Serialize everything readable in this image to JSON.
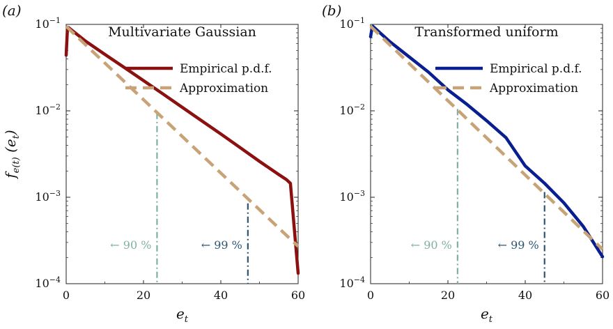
{
  "chart_data": [
    {
      "type": "line",
      "panel_label": "(a)",
      "title": "Multivariate Gaussian",
      "xlabel": "e",
      "xlabel_sub": "t",
      "ylabel": {
        "base": "f",
        "sub": "e(t)",
        "arg_open": "(e",
        "arg_sub": "t",
        "arg_close": ")"
      },
      "xlim": [
        0,
        60
      ],
      "ylim": [
        0.0001,
        0.1
      ],
      "yscale": "log",
      "xticks": [
        "0",
        "20",
        "40",
        "60"
      ],
      "yticks": [
        {
          "base": "10",
          "exp": "−1",
          "value": 0.1
        },
        {
          "base": "10",
          "exp": "−2",
          "value": 0.01
        },
        {
          "base": "10",
          "exp": "−3",
          "value": 0.001
        },
        {
          "base": "10",
          "exp": "−4",
          "value": 0.0001
        }
      ],
      "legend_position": "top-right",
      "series": [
        {
          "name": "Empirical p.d.f.",
          "color": "#8b1010",
          "style": "solid",
          "x": [
            0,
            0.3,
            0.6,
            5,
            10,
            15,
            20,
            25,
            30,
            35,
            40,
            45,
            50,
            55,
            57,
            58,
            60
          ],
          "y": [
            0.044,
            0.085,
            0.092,
            0.064,
            0.045,
            0.0318,
            0.0224,
            0.0157,
            0.011,
            0.0077,
            0.0054,
            0.00375,
            0.0026,
            0.00183,
            0.0016,
            0.00145,
            0.000132
          ]
        },
        {
          "name": "Approximation",
          "color": "#c9a378",
          "style": "dashed",
          "x": [
            0,
            60
          ],
          "y": [
            0.095,
            0.00027
          ]
        }
      ],
      "markers": [
        {
          "label": "← 90 %",
          "x": 23.5,
          "y_top": 0.0095,
          "color": "#7fb0a5"
        },
        {
          "label": "← 99 %",
          "x": 47,
          "y_top": 0.00085,
          "color": "#2d5572"
        }
      ]
    },
    {
      "type": "line",
      "panel_label": "(b)",
      "title": "Transformed uniform",
      "xlabel": "e",
      "xlabel_sub": "t",
      "xlim": [
        0,
        60
      ],
      "ylim": [
        0.0001,
        0.1
      ],
      "yscale": "log",
      "xticks": [
        "0",
        "20",
        "40",
        "60"
      ],
      "yticks": [
        {
          "base": "10",
          "exp": "−1",
          "value": 0.1
        },
        {
          "base": "10",
          "exp": "−2",
          "value": 0.01
        },
        {
          "base": "10",
          "exp": "−3",
          "value": 0.001
        },
        {
          "base": "10",
          "exp": "−4",
          "value": 0.0001
        }
      ],
      "legend_position": "top-right",
      "series": [
        {
          "name": "Empirical p.d.f.",
          "color": "#0a1f8f",
          "style": "solid",
          "x": [
            0,
            0.3,
            0.6,
            5,
            10,
            15,
            20,
            25,
            30,
            35,
            40,
            45,
            50,
            55,
            60
          ],
          "y": [
            0.072,
            0.087,
            0.095,
            0.063,
            0.042,
            0.028,
            0.0175,
            0.0118,
            0.0077,
            0.0049,
            0.0023,
            0.00145,
            0.00086,
            0.00046,
            0.000205
          ]
        },
        {
          "name": "Approximation",
          "color": "#c9a378",
          "style": "dashed",
          "x": [
            0,
            60
          ],
          "y": [
            0.095,
            0.00025
          ]
        }
      ],
      "markers": [
        {
          "label": "← 90 %",
          "x": 22.5,
          "y_top": 0.0105,
          "color": "#7fb0a5"
        },
        {
          "label": "← 99 %",
          "x": 45,
          "y_top": 0.00115,
          "color": "#2d5572"
        }
      ]
    }
  ]
}
